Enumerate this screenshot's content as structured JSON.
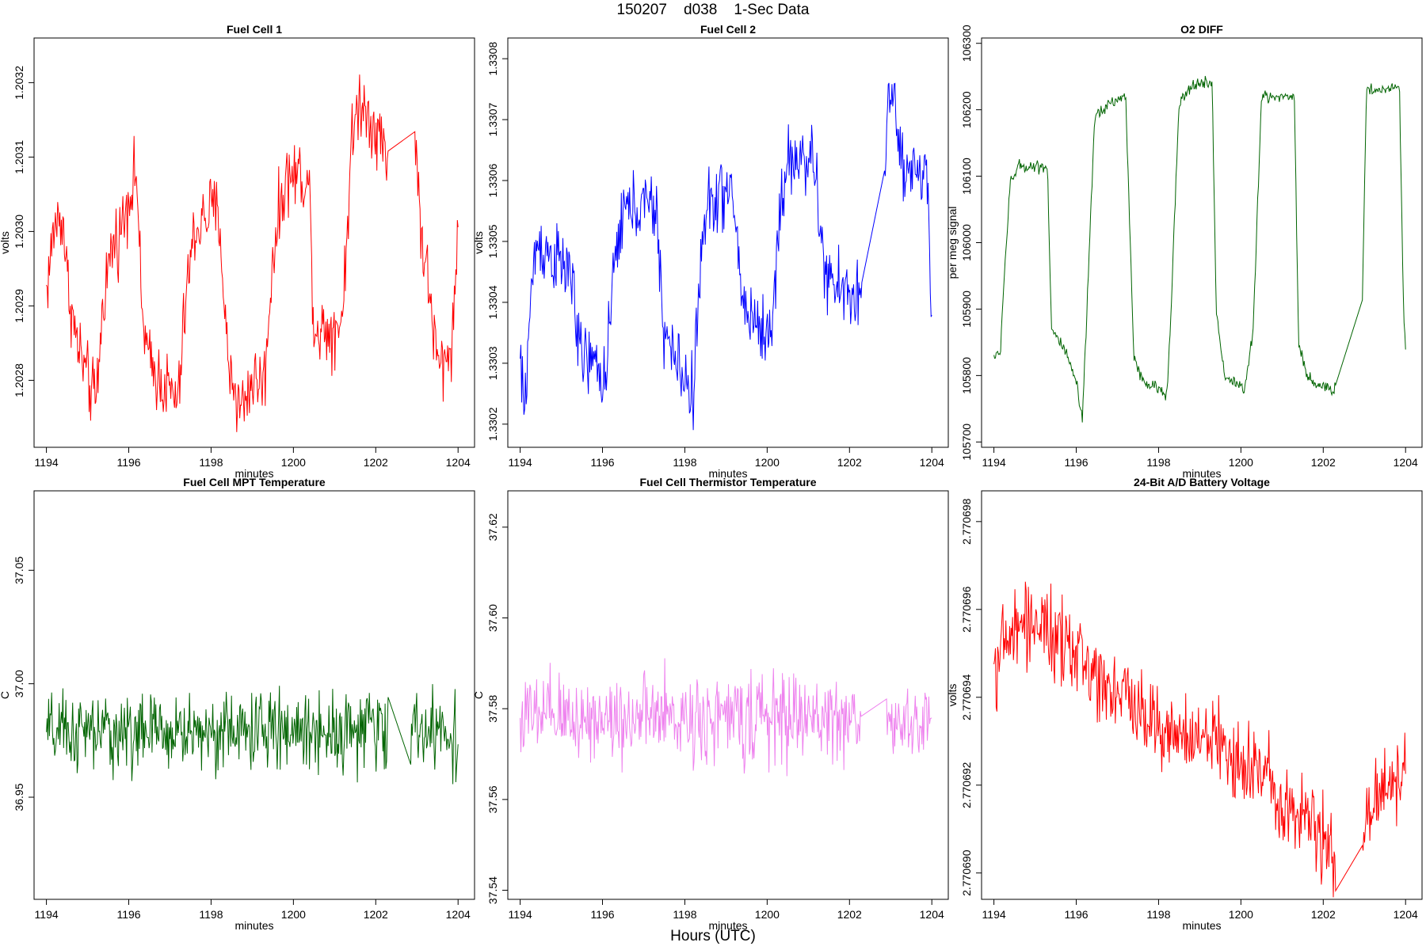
{
  "figure": {
    "title": "150207    d038    1-Sec Data",
    "xlabel": "Hours (UTC)"
  },
  "chart_data": [
    {
      "type": "line",
      "title": "Fuel Cell 1",
      "xlabel": "minutes",
      "ylabel": "volts",
      "color": "#ff0000",
      "xlim": [
        1193.7,
        1204.4
      ],
      "ylim": [
        1.20271,
        1.20326
      ],
      "xticks": [
        1194,
        1196,
        1198,
        1200,
        1202,
        1204
      ],
      "yticks": [
        "1.2028",
        "1.2029",
        "1.2030",
        "1.2031",
        "1.2032"
      ],
      "segments": [
        {
          "x0": 1194.0,
          "x1": 1202.3,
          "noise": 4.5e-05,
          "pts": [
            [
              1194.0,
              1.20292
            ],
            [
              1194.2,
              1.20301
            ],
            [
              1194.4,
              1.20302
            ],
            [
              1194.5,
              1.20294
            ],
            [
              1194.7,
              1.20286
            ],
            [
              1195.0,
              1.2028
            ],
            [
              1195.2,
              1.20277
            ],
            [
              1195.4,
              1.20292
            ],
            [
              1195.6,
              1.20298
            ],
            [
              1195.8,
              1.203
            ],
            [
              1196.0,
              1.20305
            ],
            [
              1196.2,
              1.20308
            ],
            [
              1196.3,
              1.2029
            ],
            [
              1196.5,
              1.20282
            ],
            [
              1196.8,
              1.2028
            ],
            [
              1197.2,
              1.20277
            ],
            [
              1197.4,
              1.20292
            ],
            [
              1197.6,
              1.203
            ],
            [
              1198.0,
              1.20303
            ],
            [
              1198.2,
              1.20302
            ],
            [
              1198.4,
              1.20283
            ],
            [
              1198.7,
              1.20276
            ],
            [
              1199.0,
              1.2028
            ],
            [
              1199.3,
              1.2028
            ],
            [
              1199.5,
              1.20297
            ],
            [
              1199.8,
              1.20307
            ],
            [
              1200.2,
              1.20308
            ],
            [
              1200.4,
              1.20305
            ],
            [
              1200.5,
              1.20287
            ],
            [
              1201.0,
              1.20287
            ],
            [
              1201.2,
              1.20289
            ],
            [
              1201.4,
              1.20311
            ],
            [
              1201.6,
              1.20318
            ],
            [
              1202.0,
              1.20314
            ],
            [
              1202.3,
              1.2031
            ]
          ]
        },
        {
          "x0": 1202.95,
          "x1": 1204.0,
          "noise": 4.5e-05,
          "pts": [
            [
              1202.95,
              1.20314
            ],
            [
              1203.1,
              1.203
            ],
            [
              1203.3,
              1.20292
            ],
            [
              1203.5,
              1.20282
            ],
            [
              1203.7,
              1.20282
            ],
            [
              1203.9,
              1.20288
            ],
            [
              1204.0,
              1.20302
            ]
          ]
        }
      ]
    },
    {
      "type": "line",
      "title": "Fuel Cell 2",
      "xlabel": "minutes",
      "ylabel": "volts",
      "color": "#0000ff",
      "xlim": [
        1193.7,
        1204.4
      ],
      "ylim": [
        1.330162,
        1.330834
      ],
      "xticks": [
        1194,
        1196,
        1198,
        1200,
        1202,
        1204
      ],
      "yticks": [
        "1.3302",
        "1.3303",
        "1.3304",
        "1.3305",
        "1.3306",
        "1.3307",
        "1.3308"
      ],
      "segments": [
        {
          "x0": 1194.0,
          "x1": 1202.3,
          "noise": 5.5e-05,
          "pts": [
            [
              1194.0,
              1.3303
            ],
            [
              1194.1,
              1.33022
            ],
            [
              1194.25,
              1.3304
            ],
            [
              1194.4,
              1.3305
            ],
            [
              1194.7,
              1.33048
            ],
            [
              1195.0,
              1.33046
            ],
            [
              1195.3,
              1.33044
            ],
            [
              1195.4,
              1.33032
            ],
            [
              1195.7,
              1.3303
            ],
            [
              1196.1,
              1.33028
            ],
            [
              1196.3,
              1.33047
            ],
            [
              1196.5,
              1.33055
            ],
            [
              1197.0,
              1.33056
            ],
            [
              1197.3,
              1.33055
            ],
            [
              1197.5,
              1.33035
            ],
            [
              1197.8,
              1.3303
            ],
            [
              1198.2,
              1.33025
            ],
            [
              1198.4,
              1.33048
            ],
            [
              1198.6,
              1.33057
            ],
            [
              1199.0,
              1.33058
            ],
            [
              1199.2,
              1.33056
            ],
            [
              1199.4,
              1.3304
            ],
            [
              1199.7,
              1.33037
            ],
            [
              1200.1,
              1.33034
            ],
            [
              1200.3,
              1.33055
            ],
            [
              1200.5,
              1.33063
            ],
            [
              1201.0,
              1.33064
            ],
            [
              1201.2,
              1.3306
            ],
            [
              1201.4,
              1.33044
            ],
            [
              1201.8,
              1.33042
            ],
            [
              1202.3,
              1.33041
            ]
          ]
        },
        {
          "x0": 1202.85,
          "x1": 1204.0,
          "noise": 5.5e-05,
          "pts": [
            [
              1202.85,
              1.33058
            ],
            [
              1202.95,
              1.33076
            ],
            [
              1203.1,
              1.33072
            ],
            [
              1203.3,
              1.3306
            ],
            [
              1203.5,
              1.3306
            ],
            [
              1203.7,
              1.33063
            ],
            [
              1203.9,
              1.3306
            ],
            [
              1204.0,
              1.33035
            ]
          ]
        }
      ]
    },
    {
      "type": "line",
      "title": "O2 DIFF",
      "xlabel": "minutes",
      "ylabel": "per meg signal",
      "color": "#006400",
      "xlim": [
        1193.7,
        1204.4
      ],
      "ylim": [
        105692,
        106308
      ],
      "xticks": [
        1194,
        1196,
        1198,
        1200,
        1202,
        1204
      ],
      "yticks": [
        "105700",
        "105800",
        "105900",
        "106000",
        "106100",
        "106200",
        "106300"
      ],
      "segments": [
        {
          "x0": 1194.0,
          "x1": 1202.3,
          "noise": 9,
          "pts": [
            [
              1194.0,
              105830
            ],
            [
              1194.15,
              105830
            ],
            [
              1194.25,
              105950
            ],
            [
              1194.4,
              106090
            ],
            [
              1194.6,
              106115
            ],
            [
              1195.0,
              106115
            ],
            [
              1195.3,
              106115
            ],
            [
              1195.4,
              105870
            ],
            [
              1195.7,
              105840
            ],
            [
              1196.0,
              105790
            ],
            [
              1196.15,
              105730
            ],
            [
              1196.3,
              105960
            ],
            [
              1196.45,
              106190
            ],
            [
              1196.8,
              106210
            ],
            [
              1197.2,
              106220
            ],
            [
              1197.4,
              105830
            ],
            [
              1197.6,
              105790
            ],
            [
              1198.0,
              105780
            ],
            [
              1198.2,
              105770
            ],
            [
              1198.3,
              105900
            ],
            [
              1198.5,
              106210
            ],
            [
              1198.9,
              106240
            ],
            [
              1199.3,
              106240
            ],
            [
              1199.4,
              105900
            ],
            [
              1199.6,
              105800
            ],
            [
              1200.1,
              105780
            ],
            [
              1200.3,
              105870
            ],
            [
              1200.5,
              106220
            ],
            [
              1201.0,
              106220
            ],
            [
              1201.3,
              106220
            ],
            [
              1201.4,
              105850
            ],
            [
              1201.6,
              105800
            ],
            [
              1202.0,
              105780
            ],
            [
              1202.3,
              105780
            ]
          ]
        },
        {
          "x0": 1202.95,
          "x1": 1204.0,
          "noise": 9,
          "pts": [
            [
              1202.95,
              105920
            ],
            [
              1203.05,
              106230
            ],
            [
              1203.5,
              106230
            ],
            [
              1203.85,
              106240
            ],
            [
              1203.95,
              105900
            ],
            [
              1204.0,
              105840
            ]
          ]
        }
      ]
    },
    {
      "type": "line",
      "title": "Fuel Cell MPT Temperature",
      "xlabel": "minutes",
      "ylabel": "C",
      "color": "#006400",
      "xlim": [
        1193.7,
        1204.4
      ],
      "ylim": [
        36.905,
        37.085
      ],
      "xticks": [
        1194,
        1196,
        1198,
        1200,
        1202,
        1204
      ],
      "yticks": [
        "36.95",
        "37.00",
        "37.05"
      ],
      "segments": [
        {
          "x0": 1194.0,
          "x1": 1202.3,
          "noise": 0.016,
          "pts": [
            [
              1194.0,
              36.978
            ],
            [
              1202.3,
              36.98
            ]
          ]
        },
        {
          "x0": 1202.85,
          "x1": 1204.0,
          "noise": 0.016,
          "pts": [
            [
              1202.85,
              36.98
            ],
            [
              1204.0,
              36.978
            ]
          ]
        }
      ]
    },
    {
      "type": "line",
      "title": "Fuel Cell Thermistor Temperature",
      "xlabel": "minutes",
      "ylabel": "C",
      "color": "#ee82ee",
      "xlim": [
        1193.7,
        1204.4
      ],
      "ylim": [
        37.538,
        37.628
      ],
      "xticks": [
        1194,
        1196,
        1198,
        1200,
        1202,
        1204
      ],
      "yticks": [
        "37.54",
        "37.56",
        "37.58",
        "37.60",
        "37.62"
      ],
      "segments": [
        {
          "x0": 1194.0,
          "x1": 1202.3,
          "noise": 0.009,
          "pts": [
            [
              1194.0,
              37.578
            ],
            [
              1202.3,
              37.578
            ]
          ]
        },
        {
          "x0": 1202.9,
          "x1": 1204.0,
          "noise": 0.007,
          "pts": [
            [
              1202.9,
              37.576
            ],
            [
              1204.0,
              37.577
            ]
          ]
        }
      ]
    },
    {
      "type": "line",
      "title": "24-Bit A/D Battery Voltage",
      "xlabel": "minutes",
      "ylabel": "volts",
      "color": "#ff0000",
      "xlim": [
        1193.7,
        1204.4
      ],
      "ylim": [
        2.7706894,
        2.7706987
      ],
      "xticks": [
        1194,
        1196,
        1198,
        1200,
        1202,
        1204
      ],
      "yticks": [
        "2.770690",
        "2.770692",
        "2.770694",
        "2.770696",
        "2.770698"
      ],
      "segments": [
        {
          "x0": 1194.0,
          "x1": 1202.3,
          "noise": 9e-07,
          "pts": [
            [
              1194.0,
              2.7706948
            ],
            [
              1194.5,
              2.7706955
            ],
            [
              1195.0,
              2.7706958
            ],
            [
              1195.5,
              2.7706952
            ],
            [
              1196.0,
              2.770695
            ],
            [
              1196.5,
              2.7706945
            ],
            [
              1197.0,
              2.7706942
            ],
            [
              1197.5,
              2.7706937
            ],
            [
              1198.0,
              2.7706935
            ],
            [
              1198.5,
              2.770693
            ],
            [
              1199.0,
              2.770693
            ],
            [
              1199.5,
              2.770693
            ],
            [
              1200.0,
              2.7706925
            ],
            [
              1200.5,
              2.7706923
            ],
            [
              1201.0,
              2.7706918
            ],
            [
              1201.5,
              2.7706913
            ],
            [
              1202.0,
              2.7706908
            ],
            [
              1202.3,
              2.7706903
            ]
          ]
        },
        {
          "x0": 1202.95,
          "x1": 1204.0,
          "noise": 8e-07,
          "pts": [
            [
              1202.95,
              2.770691
            ],
            [
              1203.3,
              2.7706918
            ],
            [
              1203.6,
              2.770692
            ],
            [
              1204.0,
              2.7706925
            ]
          ]
        }
      ]
    }
  ]
}
